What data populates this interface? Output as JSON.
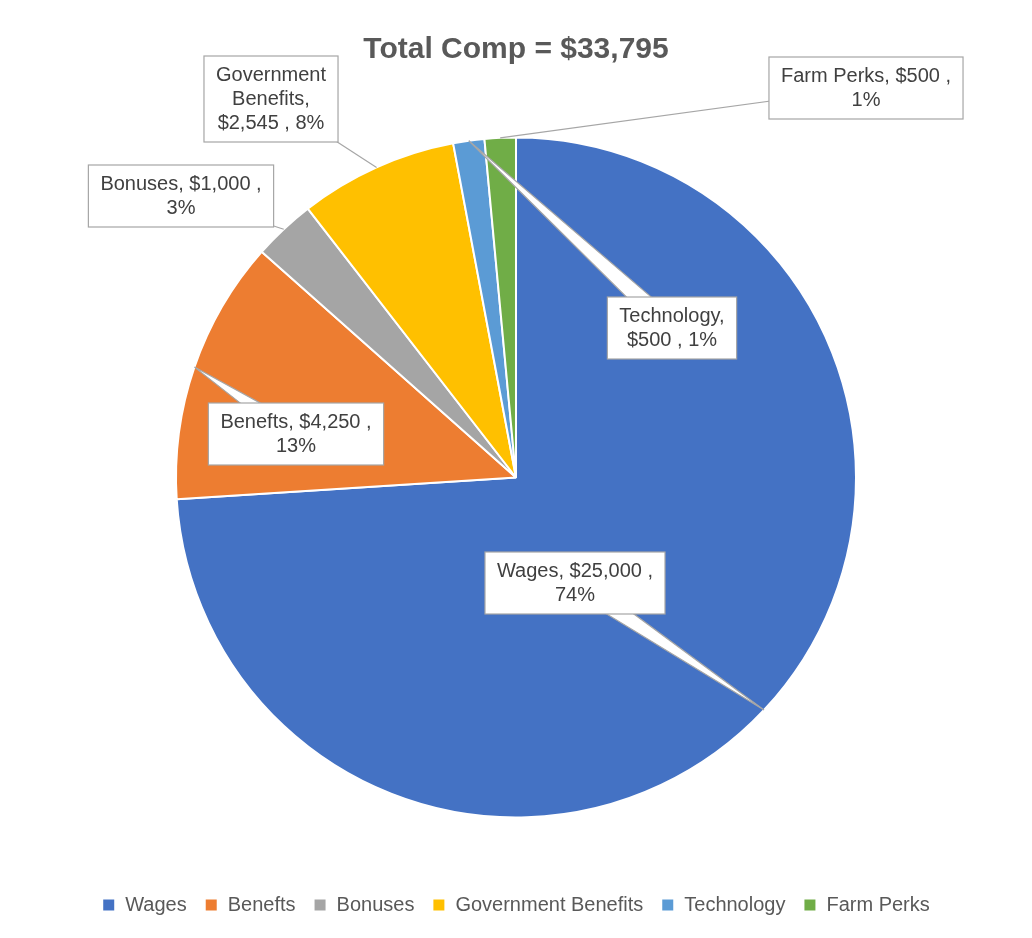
{
  "chart_data": {
    "type": "pie",
    "title": "Total Comp = $33,795",
    "categories": [
      "Wages",
      "Benefts",
      "Bonuses",
      "Government Benefits",
      "Technology",
      "Farm Perks"
    ],
    "values": [
      25000,
      4250,
      1000,
      2545,
      500,
      500
    ],
    "value_labels": [
      [
        "Wages, $25,000 ,",
        "74%"
      ],
      [
        "Benefts, $4,250 ,",
        "13%"
      ],
      [
        "Bonuses, $1,000 ,",
        "3%"
      ],
      [
        "Government",
        "Benefits,",
        "$2,545 , 8%"
      ],
      [
        "Technology,",
        "$500 , 1%"
      ],
      [
        "Farm Perks, $500 ,",
        "1%"
      ]
    ],
    "colors": [
      "#4472c4",
      "#ed7d31",
      "#a5a5a5",
      "#ffc000",
      "#5b9bd5",
      "#70ad47"
    ],
    "data_labels": true,
    "legend": "bottom"
  }
}
